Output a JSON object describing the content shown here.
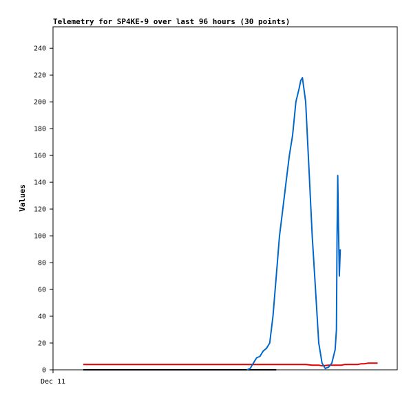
{
  "chart_data": {
    "type": "line",
    "title": "Telemetry for SP4KE-9 over last 96 hours (30 points)",
    "xlabel": "",
    "ylabel": "Values",
    "x_tick_labels": [
      "Dec 11"
    ],
    "y_ticks": [
      0,
      20,
      40,
      60,
      80,
      100,
      120,
      140,
      160,
      180,
      200,
      220,
      240
    ],
    "ylim": [
      0,
      256
    ],
    "xlim": [
      0,
      96
    ],
    "grid": false,
    "legend": "none",
    "series": [
      {
        "color": "#000000",
        "x": [
          0,
          59
        ],
        "values": [
          0,
          0
        ]
      },
      {
        "color": "#e00000",
        "x": [
          0,
          50,
          53,
          56,
          58,
          60,
          62,
          64,
          66,
          68,
          70,
          72,
          73,
          75,
          77,
          79,
          80,
          81,
          83,
          84,
          85,
          86,
          87,
          88,
          89,
          90
        ],
        "values": [
          4,
          4,
          4,
          4,
          4,
          4,
          4,
          4,
          4,
          4,
          3.5,
          3.5,
          3,
          3.5,
          3.5,
          3.5,
          4,
          4,
          4,
          4,
          4.5,
          4.5,
          5,
          5,
          5,
          5
        ]
      },
      {
        "color": "#0066cc",
        "x": [
          50,
          51,
          52,
          53,
          54,
          54.5,
          55,
          56,
          57,
          58,
          59,
          60,
          61,
          62,
          63,
          64,
          65,
          66,
          66.5,
          67,
          68,
          69,
          70,
          71,
          72,
          73,
          74,
          75,
          76,
          76.5,
          77,
          77.2,
          77.4,
          77.6,
          77.8,
          78,
          78.3,
          78.6
        ],
        "values": [
          0,
          1,
          5,
          9,
          10,
          12,
          14,
          16,
          20,
          40,
          70,
          100,
          120,
          140,
          160,
          175,
          200,
          210,
          216,
          218,
          200,
          150,
          100,
          60,
          20,
          5,
          1,
          2,
          5,
          10,
          15,
          22,
          30,
          100,
          145,
          112,
          70,
          90
        ]
      }
    ]
  }
}
